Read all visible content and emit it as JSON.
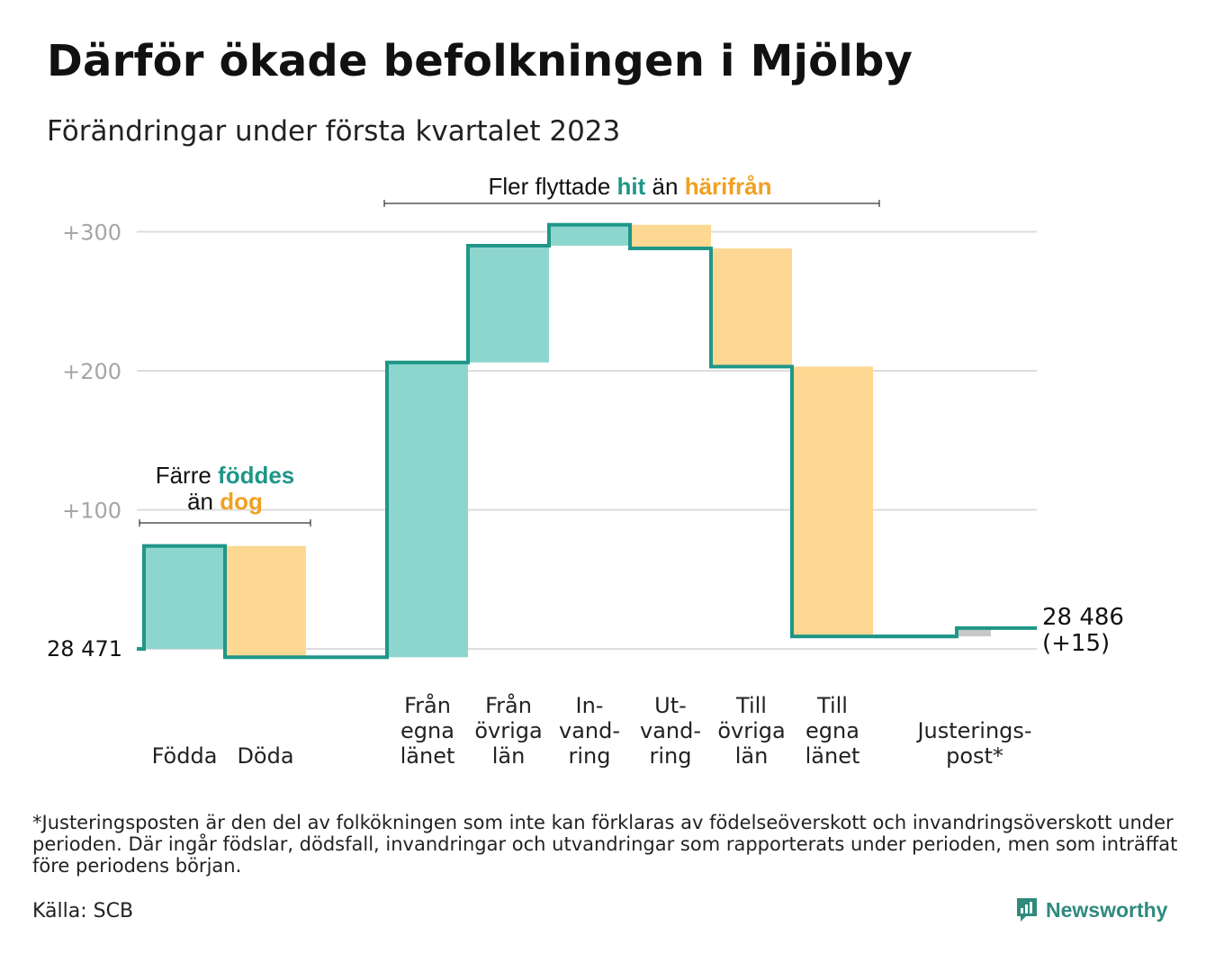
{
  "title": "Därför ökade befolkningen i Mjölby",
  "subtitle": "Förändringar under första kvartalet 2023",
  "colors": {
    "teal_line": "#1f9688",
    "teal_fill": "#8dd6cd",
    "orange_fill": "#fcd892",
    "orange_text": "#f0a020",
    "teal_text": "#1f9688",
    "adjust_fill": "#c8c8c8",
    "grid": "#dddddd",
    "tick_text": "#a6a6a6"
  },
  "annotations": {
    "births": {
      "line1": "Färre",
      "line1_highlight": "föddes",
      "line2": "än",
      "line2_highlight": "dog"
    },
    "migration": {
      "prefix": "Fler flyttade",
      "highlight1": "hit",
      "middle": "än",
      "highlight2": "härifrån"
    }
  },
  "chart_data": {
    "type": "waterfall",
    "start_label": "28 471",
    "end_label_line1": "28 486",
    "end_label_line2": "(+15)",
    "baseline": 28471,
    "y_axis": {
      "ticks": [
        100,
        200,
        300
      ],
      "tick_labels": [
        "+100",
        "+200",
        "+300"
      ],
      "range": [
        -10,
        310
      ]
    },
    "steps": [
      {
        "label": [
          "Födda"
        ],
        "change": 74,
        "type": "in"
      },
      {
        "label": [
          "Döda"
        ],
        "change": -80,
        "type": "out"
      },
      {
        "label": [
          "Från",
          "egna",
          "länet"
        ],
        "change": 212,
        "type": "in"
      },
      {
        "label": [
          "Från",
          "övriga",
          "län"
        ],
        "change": 84,
        "type": "in"
      },
      {
        "label": [
          "In-",
          "vand-",
          "ring"
        ],
        "change": 15,
        "type": "in"
      },
      {
        "label": [
          "Ut-",
          "vand-",
          "ring"
        ],
        "change": -17,
        "type": "out"
      },
      {
        "label": [
          "Till",
          "övriga",
          "län"
        ],
        "change": -85,
        "type": "out"
      },
      {
        "label": [
          "Till",
          "egna",
          "länet"
        ],
        "change": -194,
        "type": "out"
      },
      {
        "label": [
          "Justerings-",
          "post*"
        ],
        "change": 6,
        "type": "adjust"
      }
    ],
    "total_change": 15
  },
  "footnote": "*Justeringsposten är den del av folkökningen som inte kan förklaras av födelseöverskott och invandringsöverskott under perioden. Där ingår födslar, dödsfall, invandringar och utvandringar som rapporterats under perioden, men som inträffat före periodens början.",
  "source": "Källa: SCB",
  "brand": {
    "name": "Newsworthy",
    "icon": "newsworthy-logo-icon"
  }
}
